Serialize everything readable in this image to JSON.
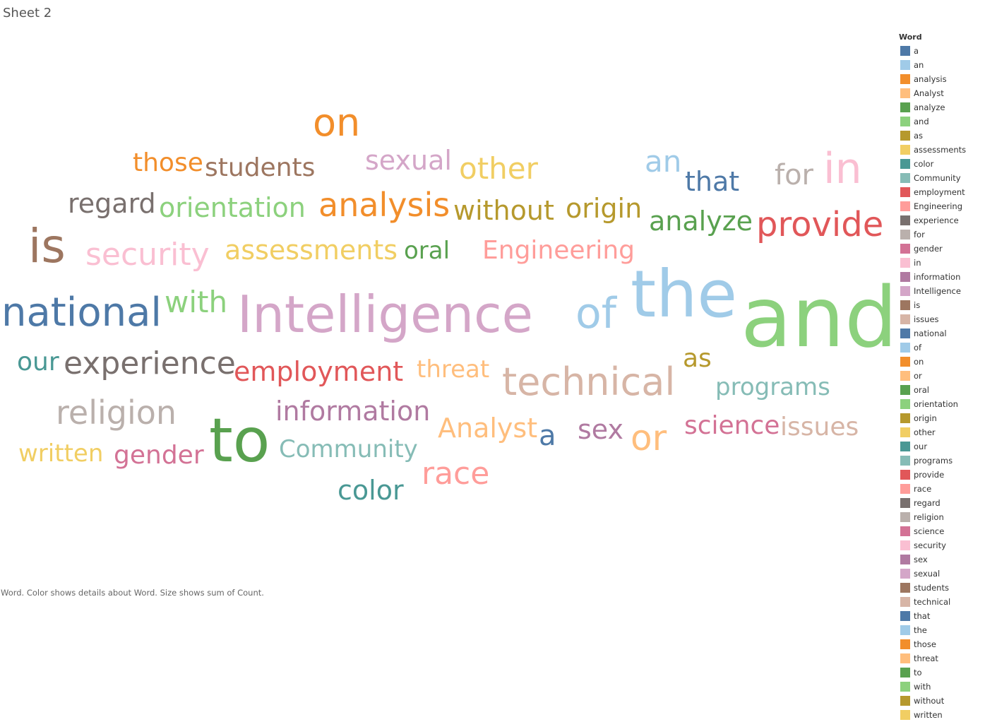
{
  "sheet": {
    "title": "Sheet 2"
  },
  "caption": "Word.  Color shows details about Word.  Size shows sum of Count.",
  "legend": {
    "title": "Word"
  },
  "chart_data": {
    "type": "word_cloud",
    "size_measure": "sum of Count",
    "color_dimension": "Word",
    "words": [
      {
        "text": "a",
        "color": "#4e79a7"
      },
      {
        "text": "an",
        "color": "#a0cbe8"
      },
      {
        "text": "analysis",
        "color": "#f28e2b"
      },
      {
        "text": "Analyst",
        "color": "#ffbe7d"
      },
      {
        "text": "analyze",
        "color": "#59a14f"
      },
      {
        "text": "and",
        "color": "#8cd17d"
      },
      {
        "text": "as",
        "color": "#b6992d"
      },
      {
        "text": "assessments",
        "color": "#f1ce63"
      },
      {
        "text": "color",
        "color": "#499894"
      },
      {
        "text": "Community",
        "color": "#86bcb6"
      },
      {
        "text": "employment",
        "color": "#e15759"
      },
      {
        "text": "Engineering",
        "color": "#ff9d9a"
      },
      {
        "text": "experience",
        "color": "#79706e"
      },
      {
        "text": "for",
        "color": "#bab0ac"
      },
      {
        "text": "gender",
        "color": "#d37295"
      },
      {
        "text": "in",
        "color": "#fabfd2"
      },
      {
        "text": "information",
        "color": "#b07aa1"
      },
      {
        "text": "Intelligence",
        "color": "#d4a6c8"
      },
      {
        "text": "is",
        "color": "#9d7660"
      },
      {
        "text": "issues",
        "color": "#d7b5a6"
      },
      {
        "text": "national",
        "color": "#4e79a7"
      },
      {
        "text": "of",
        "color": "#a0cbe8"
      },
      {
        "text": "on",
        "color": "#f28e2b"
      },
      {
        "text": "or",
        "color": "#ffbe7d"
      },
      {
        "text": "oral",
        "color": "#59a14f"
      },
      {
        "text": "orientation",
        "color": "#8cd17d"
      },
      {
        "text": "origin",
        "color": "#b6992d"
      },
      {
        "text": "other",
        "color": "#f1ce63"
      },
      {
        "text": "our",
        "color": "#499894"
      },
      {
        "text": "programs",
        "color": "#86bcb6"
      },
      {
        "text": "provide",
        "color": "#e15759"
      },
      {
        "text": "race",
        "color": "#ff9d9a"
      },
      {
        "text": "regard",
        "color": "#79706e"
      },
      {
        "text": "religion",
        "color": "#bab0ac"
      },
      {
        "text": "science",
        "color": "#d37295"
      },
      {
        "text": "security",
        "color": "#fabfd2"
      },
      {
        "text": "sex",
        "color": "#b07aa1"
      },
      {
        "text": "sexual",
        "color": "#d4a6c8"
      },
      {
        "text": "students",
        "color": "#9d7660"
      },
      {
        "text": "technical",
        "color": "#d7b5a6"
      },
      {
        "text": "that",
        "color": "#4e79a7"
      },
      {
        "text": "the",
        "color": "#a0cbe8"
      },
      {
        "text": "those",
        "color": "#f28e2b"
      },
      {
        "text": "threat",
        "color": "#ffbe7d"
      },
      {
        "text": "to",
        "color": "#59a14f"
      },
      {
        "text": "with",
        "color": "#8cd17d"
      },
      {
        "text": "without",
        "color": "#b6992d"
      },
      {
        "text": "written",
        "color": "#f1ce63"
      }
    ]
  }
}
